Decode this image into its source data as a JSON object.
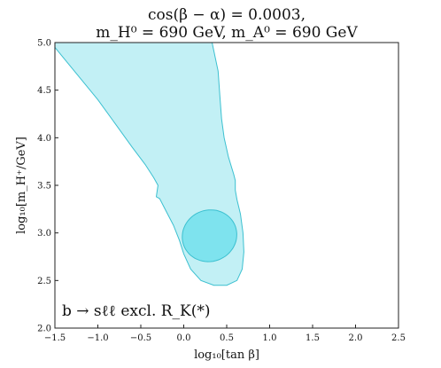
{
  "chart_data": {
    "type": "area",
    "title_lines": [
      "cos(β − α) = 0.0003,",
      "m_H⁰ = 690 GeV, m_A⁰ = 690 GeV"
    ],
    "xlabel": "log₁₀[tan β]",
    "ylabel": "log₁₀[m_H⁺/GeV]",
    "xlim": [
      -1.5,
      2.5
    ],
    "ylim": [
      2.0,
      5.0
    ],
    "xticks": [
      "−1.5",
      "−1.0",
      "−0.5",
      "0.0",
      "0.5",
      "1.0",
      "1.5",
      "2.0",
      "2.5"
    ],
    "yticks": [
      "2.0",
      "2.5",
      "3.0",
      "3.5",
      "4.0",
      "4.5",
      "5.0"
    ],
    "annotation": "b → sℓℓ excl. R_K(*)",
    "grid": false,
    "colors": {
      "outer_fill": "#c2f0f5",
      "inner_fill": "#7ee3ee",
      "edge": "#3cc0d0"
    },
    "series": [
      {
        "role": "outer-region",
        "x": [
          -1.5,
          -1.5,
          -1.2,
          -0.9,
          -0.65,
          -0.45,
          -0.34,
          -0.3,
          -0.32,
          -0.28,
          -0.2,
          -0.1,
          0.0,
          0.1,
          0.25,
          0.4,
          0.55,
          0.65,
          0.7,
          0.72,
          0.7,
          0.65,
          0.6,
          0.52,
          0.45,
          0.4,
          0.32,
          0.3,
          0.22,
          0.2,
          0.2
        ],
        "y": [
          4.95,
          5.0,
          5.0,
          5.0,
          5.0,
          5.0,
          5.0,
          5.0,
          5.0,
          5.0,
          5.0,
          5.0,
          5.0,
          5.0,
          5.0,
          5.0,
          5.0,
          5.0,
          5.0,
          5.0,
          5.0,
          5.0,
          5.0,
          5.0,
          5.0,
          5.0,
          5.0,
          5.0,
          5.0,
          5.0,
          5.0
        ]
      }
    ],
    "regions": [
      {
        "name": "outer",
        "x": [
          -1.5,
          -1.2,
          -1.0,
          -0.8,
          -0.6,
          -0.45,
          -0.35,
          -0.3,
          -0.32,
          -0.28,
          -0.2,
          -0.12,
          -0.05,
          0.0,
          0.08,
          0.2,
          0.35,
          0.5,
          0.62,
          0.68,
          0.7,
          0.69,
          0.66,
          0.62,
          0.6,
          0.6,
          0.58,
          0.56,
          0.52,
          0.47,
          0.44,
          0.42,
          0.4,
          0.33,
          0.2,
          0.05,
          -0.1,
          -0.3,
          -0.6,
          -0.9,
          -1.2,
          -1.5
        ],
        "y": [
          4.95,
          4.62,
          4.4,
          4.15,
          3.9,
          3.72,
          3.58,
          3.5,
          3.38,
          3.36,
          3.22,
          3.08,
          2.92,
          2.78,
          2.62,
          2.5,
          2.45,
          2.45,
          2.5,
          2.62,
          2.8,
          3.0,
          3.2,
          3.35,
          3.45,
          3.55,
          3.62,
          3.68,
          3.8,
          4.0,
          4.2,
          4.45,
          4.7,
          5.0,
          5.0,
          5.0,
          5.0,
          5.0,
          5.0,
          5.0,
          5.0,
          5.0
        ]
      },
      {
        "name": "inner",
        "center": [
          0.3,
          2.97
        ],
        "x_half_width": 0.32,
        "y_half_height": 0.27,
        "tilt_deg": -20
      }
    ]
  }
}
